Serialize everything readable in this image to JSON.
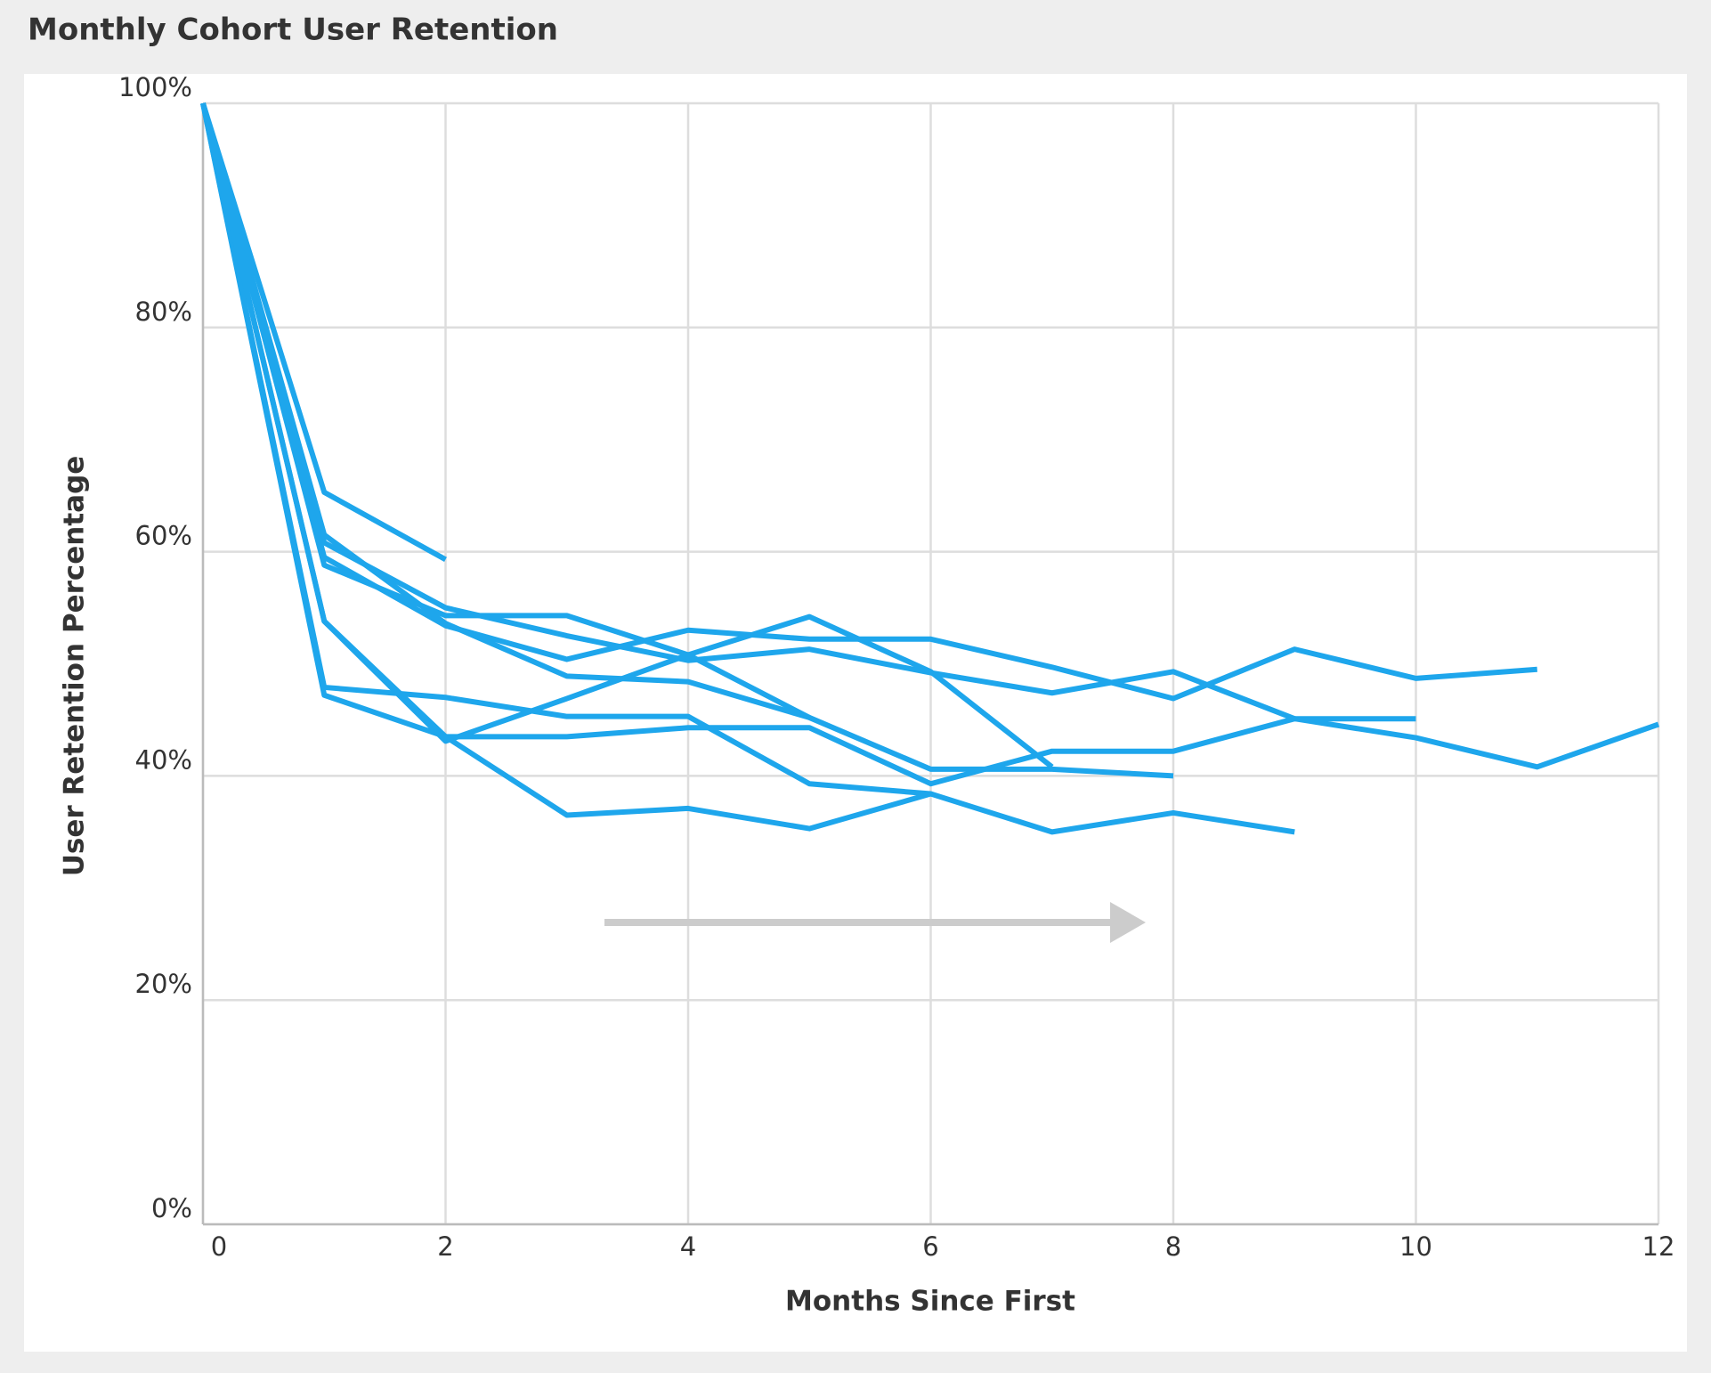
{
  "chart_data": {
    "type": "line",
    "title": "Monthly Cohort User Retention",
    "x_label": "Months Since First",
    "y_label": "User Retention Percentage",
    "xlim": [
      0,
      12
    ],
    "xticks": [
      0,
      2,
      4,
      6,
      8,
      10,
      12
    ],
    "ylim": [
      0,
      100
    ],
    "yticks": [
      {
        "value": 0,
        "label": "0%"
      },
      {
        "value": 20,
        "label": "20%"
      },
      {
        "value": 40,
        "label": "40%"
      },
      {
        "value": 60,
        "label": "60%"
      },
      {
        "value": 80,
        "label": "80%"
      },
      {
        "value": 100,
        "label": "100%"
      }
    ],
    "grid": true,
    "series": [
      {
        "color": "#1ea6ec",
        "values": [
          100,
          65.3,
          59.3
        ]
      },
      {
        "color": "#1ea6ec",
        "values": [
          100,
          60.8,
          55,
          52.5,
          50.3,
          51.3,
          49.2,
          47.4,
          49.3,
          45.1,
          43.4,
          40.8,
          44.6
        ]
      },
      {
        "color": "#1ea6ec",
        "values": [
          100,
          59.5,
          53.4,
          50.4,
          53,
          52.2,
          52.2,
          49.7,
          46.9,
          51.3,
          48.7,
          49.5
        ]
      },
      {
        "color": "#1ea6ec",
        "values": [
          100,
          47.2,
          43.5,
          43.5,
          44.3,
          44.3,
          39.3,
          42.2,
          42.2,
          45.1,
          45.1
        ]
      },
      {
        "color": "#1ea6ec",
        "values": [
          100,
          47.9,
          47,
          45.3,
          45.3,
          39.3,
          38.4,
          35,
          36.7,
          35
        ]
      },
      {
        "color": "#1ea6ec",
        "values": [
          100,
          61.5,
          53.6,
          48.9,
          48.4,
          45.2,
          40.6,
          40.6,
          40
        ]
      },
      {
        "color": "#1ea6ec",
        "values": [
          100,
          53.8,
          43.1,
          46.9,
          50.8,
          54.2,
          49.3,
          40.8
        ]
      },
      {
        "color": "#1ea6ec",
        "values": [
          100,
          53.8,
          43.5,
          36.5,
          37.1,
          35.3,
          38.4
        ]
      },
      {
        "color": "#1ea6ec",
        "values": [
          100,
          58.8,
          54.3,
          54.3,
          50.8,
          45.2
        ]
      }
    ]
  }
}
